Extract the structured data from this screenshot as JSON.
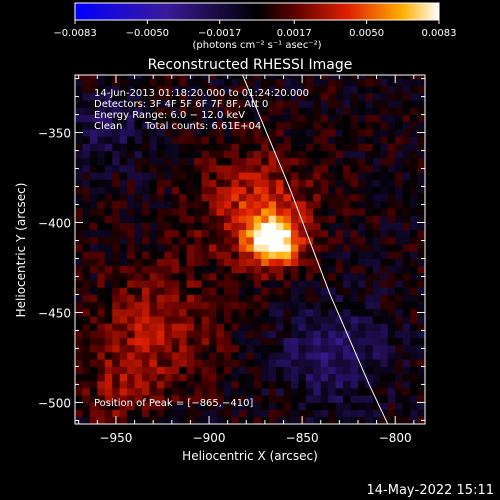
{
  "chart_data": {
    "type": "heatmap",
    "title": "Reconstructed RHESSI Image",
    "xlabel": "Heliocentric X (arcsec)",
    "ylabel": "Heliocentric Y (arcsec)",
    "xlim": [
      -972,
      -784
    ],
    "ylim": [
      -512,
      -318
    ],
    "x_ticks": [
      -950,
      -900,
      -850,
      -800
    ],
    "x_tick_labels": [
      "−950",
      "−900",
      "−850",
      "−800"
    ],
    "y_ticks": [
      -500,
      -450,
      -400,
      -350
    ],
    "y_tick_labels": [
      "−500",
      "−450",
      "−400",
      "−350"
    ],
    "colorbar": {
      "min": -0.0083,
      "max": 0.0083,
      "ticks": [
        -0.0083,
        -0.005,
        -0.0017,
        0.0017,
        0.005,
        0.0083
      ],
      "tick_labels": [
        "−0.0083",
        "−0.0050",
        "−0.0017",
        "0.0017",
        "0.0050",
        "0.0083"
      ],
      "unit_label": "(photons cm⁻² s⁻¹ asec⁻²)"
    },
    "annotations": {
      "time_range": "14‑Jun‑2013 01:18:20.000 to 01:24:20.000",
      "detectors": "Detectors: 3F 4F 5F 6F 7F 8F, Att 0",
      "energy_range": "Energy Range: 6.0 − 12.0 keV",
      "method": "Clean",
      "total_counts": "Total counts: 6.61E+04",
      "peak_position": "Position of Peak = [−865,−410]"
    },
    "peak": {
      "x": -865,
      "y": -410,
      "value": 0.0083
    },
    "limb_curve": [
      [
        -882,
        -318
      ],
      [
        -857,
        -380
      ],
      [
        -835,
        -440
      ],
      [
        -814,
        -490
      ],
      [
        -804,
        -512
      ]
    ]
  },
  "footer_timestamp": "14‑May‑2022 15:11"
}
